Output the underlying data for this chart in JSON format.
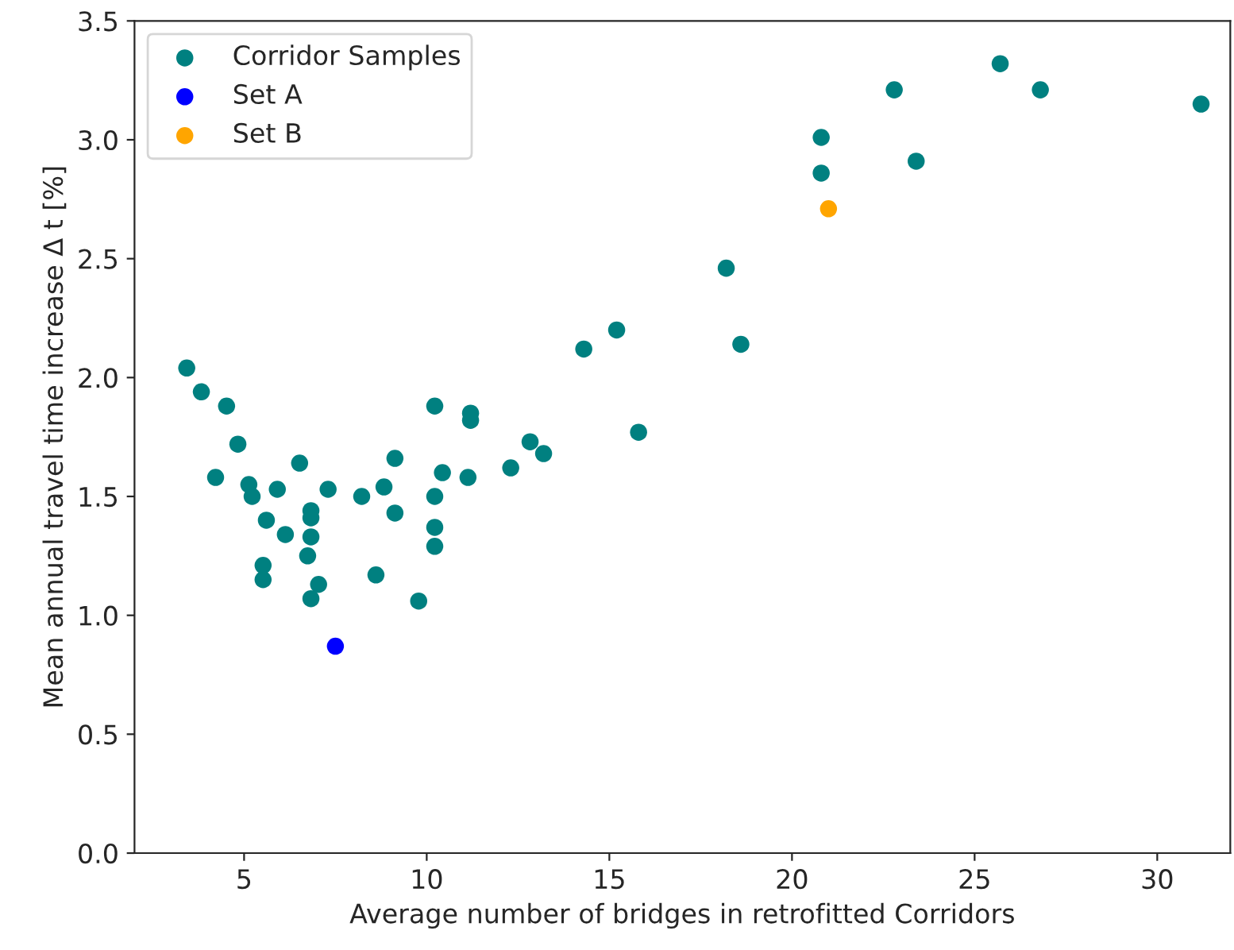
{
  "chart_data": {
    "type": "scatter",
    "xlabel": "Average number of bridges in retrofitted Corridors",
    "ylabel": "Mean annual travel time increase Δ t [%]",
    "xlim": [
      2,
      32
    ],
    "xticks": [
      5,
      10,
      15,
      20,
      25,
      30
    ],
    "ylim": [
      0,
      3.5
    ],
    "yticks": [
      {
        "value": 0,
        "label": "0.0"
      },
      0.5,
      {
        "value": 1,
        "label": "1.0"
      },
      1.5,
      {
        "value": 2,
        "label": "2.0"
      },
      2.5,
      {
        "value": 3,
        "label": "3.0"
      },
      3.5
    ],
    "legend": "top left",
    "grid": false,
    "marker": "circle",
    "series": [
      {
        "name": "Corridor Samples",
        "color": "#008080",
        "x": [
          3.43,
          3.83,
          4.52,
          4.83,
          4.22,
          5.13,
          5.22,
          5.61,
          5.91,
          6.52,
          6.13,
          6.83,
          6.83,
          6.83,
          7.3,
          5.52,
          5.52,
          6.74,
          6.83,
          7.04,
          8.22,
          8.83,
          9.13,
          9.13,
          8.61,
          9.78,
          10.22,
          10.22,
          10.22,
          10.22,
          10.43,
          11.13,
          11.2,
          11.2,
          12.3,
          12.83,
          13.2,
          14.3,
          15.2,
          15.8,
          18.2,
          18.6,
          20.8,
          20.8,
          22.8,
          23.4,
          25.7,
          26.8,
          31.2
        ],
        "values": [
          2.04,
          1.94,
          1.88,
          1.72,
          1.58,
          1.55,
          1.5,
          1.4,
          1.53,
          1.64,
          1.34,
          1.44,
          1.41,
          1.33,
          1.53,
          1.21,
          1.15,
          1.25,
          1.07,
          1.13,
          1.5,
          1.54,
          1.66,
          1.43,
          1.17,
          1.06,
          1.88,
          1.5,
          1.37,
          1.29,
          1.6,
          1.58,
          1.85,
          1.82,
          1.62,
          1.73,
          1.68,
          2.12,
          2.2,
          1.77,
          2.46,
          2.14,
          3.01,
          2.86,
          3.21,
          2.91,
          3.32,
          3.21,
          3.15
        ]
      },
      {
        "name": "Set A",
        "color": "#0000ff",
        "x": [
          7.5
        ],
        "values": [
          0.87
        ]
      },
      {
        "name": "Set B",
        "color": "#ffa500",
        "x": [
          21.0
        ],
        "values": [
          2.71
        ]
      }
    ]
  }
}
